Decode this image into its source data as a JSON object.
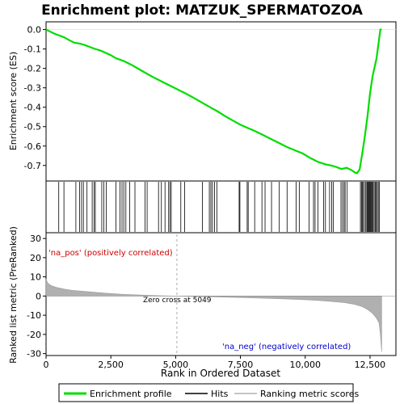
{
  "chart_data": {
    "type": "line",
    "title": "Enrichment plot: MATZUK_SPERMATOZOA",
    "top_panel": {
      "ylabel": "Enrichment score (ES)",
      "ylim": [
        -0.78,
        0.04
      ],
      "yticks": [
        0.0,
        -0.1,
        -0.2,
        -0.3,
        -0.4,
        -0.5,
        -0.6,
        -0.7
      ],
      "ytick_labels": [
        "0.0",
        "-0.1",
        "-0.2",
        "-0.3",
        "-0.4",
        "-0.5",
        "-0.6",
        "-0.7"
      ],
      "series": [
        {
          "name": "Enrichment profile",
          "color": "#00dd00",
          "x": [
            0,
            300,
            500,
            700,
            900,
            1100,
            1300,
            1500,
            1700,
            1900,
            2100,
            2300,
            2500,
            2700,
            3000,
            3300,
            3600,
            3900,
            4200,
            4500,
            4800,
            5100,
            5400,
            5700,
            6000,
            6300,
            6600,
            6900,
            7200,
            7500,
            7800,
            8100,
            8400,
            8700,
            9000,
            9300,
            9600,
            9900,
            10200,
            10500,
            10800,
            11000,
            11200,
            11400,
            11600,
            11800,
            11900,
            12000,
            12100,
            12150,
            12200,
            12300,
            12400,
            12500,
            12600,
            12700,
            12750,
            12800,
            12850,
            12900,
            12950
          ],
          "y": [
            0.0,
            -0.02,
            -0.03,
            -0.04,
            -0.055,
            -0.068,
            -0.072,
            -0.08,
            -0.09,
            -0.1,
            -0.108,
            -0.12,
            -0.132,
            -0.148,
            -0.162,
            -0.182,
            -0.205,
            -0.228,
            -0.25,
            -0.27,
            -0.29,
            -0.31,
            -0.33,
            -0.352,
            -0.375,
            -0.398,
            -0.42,
            -0.445,
            -0.468,
            -0.49,
            -0.508,
            -0.525,
            -0.545,
            -0.565,
            -0.585,
            -0.605,
            -0.622,
            -0.638,
            -0.662,
            -0.682,
            -0.695,
            -0.7,
            -0.708,
            -0.718,
            -0.712,
            -0.725,
            -0.735,
            -0.74,
            -0.72,
            -0.68,
            -0.64,
            -0.55,
            -0.45,
            -0.33,
            -0.24,
            -0.18,
            -0.15,
            -0.1,
            -0.05,
            0.0,
            0.0
          ]
        }
      ]
    },
    "hits": {
      "name": "Hits",
      "positions": [
        490,
        690,
        1150,
        1290,
        1370,
        1440,
        1580,
        1780,
        1850,
        1900,
        2150,
        2230,
        2320,
        2700,
        2850,
        2930,
        3000,
        3080,
        3230,
        3430,
        3820,
        3900,
        4340,
        4450,
        4590,
        4730,
        4780,
        4830,
        5200,
        5350,
        6030,
        6300,
        6360,
        6420,
        6500,
        6590,
        7450,
        7480,
        7760,
        7800,
        8050,
        8330,
        8450,
        8700,
        9000,
        9300,
        9650,
        9770,
        10150,
        10320,
        10380,
        10490,
        10710,
        10780,
        10940,
        11020,
        11080,
        11380,
        11440,
        11500,
        11540,
        11620,
        12130,
        12170,
        12200,
        12240,
        12290,
        12340,
        12380,
        12410,
        12440,
        12470,
        12500,
        12530,
        12560,
        12590,
        12620,
        12660,
        12700,
        12740,
        12780,
        12820,
        12860
      ]
    },
    "bottom_panel": {
      "ylabel": "Ranked list metric (PreRanked)",
      "xlabel": "Rank in Ordered Dataset",
      "xlim": [
        0,
        13500
      ],
      "ylim": [
        -31,
        33
      ],
      "yticks": [
        30,
        20,
        10,
        0,
        -10,
        -20,
        -30
      ],
      "ytick_labels": [
        "30",
        "20",
        "10",
        "0",
        "-10",
        "-20",
        "-30"
      ],
      "xticks": [
        0,
        2500,
        5000,
        7500,
        10000,
        12500
      ],
      "xtick_labels": [
        "0",
        "2,500",
        "5,000",
        "7,500",
        "10,000",
        "12,500"
      ],
      "metric_x": [
        0,
        50,
        100,
        200,
        400,
        700,
        1000,
        1500,
        2000,
        2500,
        3000,
        3500,
        4000,
        4500,
        5049,
        6000,
        7000,
        8000,
        9000,
        10000,
        10500,
        11000,
        11500,
        11900,
        12200,
        12400,
        12600,
        12750,
        12850,
        12900,
        12950
      ],
      "metric_y": [
        8.8,
        7.2,
        6.3,
        5.4,
        4.5,
        3.6,
        3.0,
        2.4,
        1.8,
        1.3,
        0.9,
        0.6,
        0.35,
        0.15,
        0.0,
        -0.3,
        -0.6,
        -1.0,
        -1.4,
        -1.9,
        -2.3,
        -2.8,
        -3.4,
        -4.3,
        -5.5,
        -7.0,
        -9.0,
        -11.5,
        -14.0,
        -20.0,
        -29.0
      ],
      "metric_fill_color": "#b0b0b0"
    },
    "annotations": {
      "pos_label": "'na_pos' (positively correlated)",
      "neg_label": "'na_neg' (negatively correlated)",
      "zero_cross_label": "Zero cross at 5049",
      "zero_cross": 5049
    },
    "legend": {
      "placement": "bottom",
      "entries": [
        {
          "label": "Enrichment profile",
          "color": "#00dd00"
        },
        {
          "label": "Hits",
          "color": "#000000"
        },
        {
          "label": "Ranking metric scores",
          "color": "#b0b0b0"
        }
      ]
    },
    "n_genes": 12950,
    "colors": {
      "profile": "#00dd00",
      "pos_text": "#cc0000",
      "neg_text": "#0000cc",
      "zero_line": "#aaaaaa"
    }
  }
}
